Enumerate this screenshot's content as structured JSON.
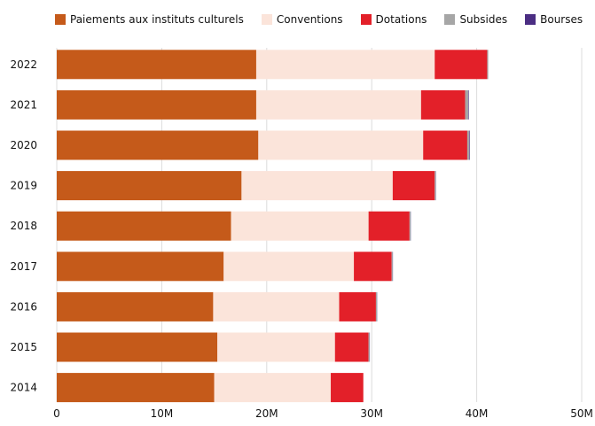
{
  "chart_data": {
    "type": "bar",
    "orientation": "horizontal",
    "stacked": true,
    "categories": [
      "2022",
      "2021",
      "2020",
      "2019",
      "2018",
      "2017",
      "2016",
      "2015",
      "2014"
    ],
    "series": [
      {
        "name": "Paiements aux instituts culturels",
        "color": "#c55a1a",
        "values": [
          19.0,
          19.0,
          19.2,
          17.6,
          16.6,
          15.9,
          14.9,
          15.3,
          15.0
        ]
      },
      {
        "name": "Conventions",
        "color": "#fbe4da",
        "values": [
          17.0,
          15.7,
          15.7,
          14.4,
          13.1,
          12.4,
          12.0,
          11.2,
          11.1
        ]
      },
      {
        "name": "Dotations",
        "color": "#e32029",
        "values": [
          5.0,
          4.2,
          4.2,
          4.0,
          3.9,
          3.6,
          3.5,
          3.2,
          3.1
        ]
      },
      {
        "name": "Subsides",
        "color": "#a6a6a6",
        "values": [
          0.1,
          0.3,
          0.2,
          0.1,
          0.1,
          0.1,
          0.1,
          0.1,
          0.0
        ]
      },
      {
        "name": "Bourses",
        "color": "#4b2e83",
        "values": [
          0.0,
          0.05,
          0.05,
          0.02,
          0.02,
          0.02,
          0.02,
          0.02,
          0.0
        ]
      }
    ],
    "xlim": [
      0,
      50
    ],
    "x_ticks": [
      0,
      10,
      20,
      30,
      40,
      50
    ],
    "x_tick_labels": [
      "0",
      "10M",
      "20M",
      "30M",
      "40M",
      "50M"
    ],
    "grid": "vertical",
    "legend_position": "top",
    "xlabel": "",
    "ylabel": "",
    "title": ""
  }
}
